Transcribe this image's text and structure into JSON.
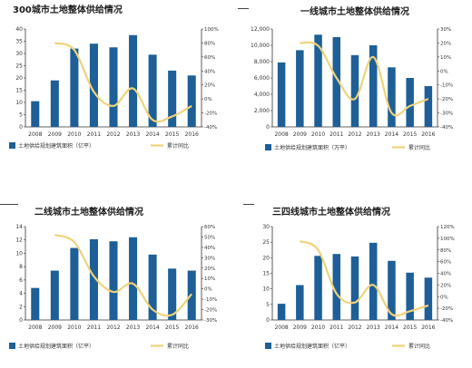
{
  "colors": {
    "bar": "#1d5f96",
    "line": "#f0d27a",
    "axis": "#333333",
    "grid": "#dddddd"
  },
  "chart_data": [
    {
      "type": "bar",
      "title": "300城市土地整体供给情况",
      "categories": [
        "2008",
        "2009",
        "2010",
        "2011",
        "2012",
        "2013",
        "2014",
        "2015",
        "2016"
      ],
      "series": [
        {
          "name": "土地供给规划建筑面积（亿平）",
          "type": "bar",
          "axis": "left",
          "values": [
            10.5,
            19.0,
            32.0,
            34.0,
            32.5,
            37.5,
            29.5,
            23.0,
            21.0
          ]
        },
        {
          "name": "累计同比",
          "type": "line",
          "axis": "right",
          "values": [
            null,
            80,
            70,
            10,
            -10,
            15,
            -30,
            -25,
            -10
          ]
        }
      ],
      "ylim": [
        0,
        40
      ],
      "yticks": [
        "0",
        "5",
        "10",
        "15",
        "20",
        "25",
        "30",
        "35",
        "40"
      ],
      "y2lim": [
        -40,
        100
      ],
      "y2ticks": [
        "-40%",
        "-20%",
        "0%",
        "20%",
        "40%",
        "60%",
        "80%",
        "100%"
      ]
    },
    {
      "type": "bar",
      "title": "一线城市土地整体供给情况",
      "categories": [
        "2008",
        "2009",
        "2010",
        "2011",
        "2012",
        "2013",
        "2014",
        "2015",
        "2016"
      ],
      "series": [
        {
          "name": "土地供给规划建筑面积（万平）",
          "type": "bar",
          "axis": "left",
          "values": [
            7900,
            9400,
            11300,
            11000,
            8800,
            10000,
            7300,
            6000,
            5000
          ]
        },
        {
          "name": "累计同比",
          "type": "line",
          "axis": "right",
          "values": [
            null,
            20,
            18,
            -5,
            -20,
            10,
            -30,
            -25,
            -20
          ]
        }
      ],
      "ylim": [
        0,
        12000
      ],
      "yticks": [
        "0",
        "2,000",
        "4,000",
        "6,000",
        "8,000",
        "10,000",
        "12,000"
      ],
      "y2lim": [
        -40,
        30
      ],
      "y2ticks": [
        "-40%",
        "-30%",
        "-20%",
        "-10%",
        "0%",
        "10%",
        "20%",
        "30%"
      ]
    },
    {
      "type": "bar",
      "title": "二线城市土地整体供给情况",
      "categories": [
        "2008",
        "2009",
        "2010",
        "2011",
        "2012",
        "2013",
        "2014",
        "2015",
        "2016"
      ],
      "series": [
        {
          "name": "土地供给规划建筑面积（亿平）",
          "type": "bar",
          "axis": "left",
          "values": [
            4.8,
            7.4,
            10.8,
            12.1,
            11.8,
            12.4,
            9.8,
            7.7,
            7.4
          ]
        },
        {
          "name": "累计同比",
          "type": "line",
          "axis": "right",
          "values": [
            null,
            52,
            45,
            12,
            -3,
            5,
            -20,
            -25,
            -5
          ]
        }
      ],
      "ylim": [
        0,
        14
      ],
      "yticks": [
        "0",
        "2",
        "4",
        "6",
        "8",
        "10",
        "12",
        "14"
      ],
      "y2lim": [
        -30,
        60
      ],
      "y2ticks": [
        "-30%",
        "-20%",
        "-10%",
        "0%",
        "10%",
        "20%",
        "30%",
        "40%",
        "50%",
        "60%"
      ]
    },
    {
      "type": "bar",
      "title": "三四线城市土地整体供给情况",
      "categories": [
        "2008",
        "2009",
        "2010",
        "2011",
        "2012",
        "2013",
        "2014",
        "2015",
        "2016"
      ],
      "series": [
        {
          "name": "土地供给规划建筑面积（亿平）",
          "type": "bar",
          "axis": "left",
          "values": [
            5.2,
            11.2,
            20.6,
            21.2,
            20.4,
            24.8,
            19.0,
            15.2,
            13.6
          ]
        },
        {
          "name": "累计同比",
          "type": "line",
          "axis": "right",
          "values": [
            null,
            95,
            80,
            5,
            -10,
            20,
            -30,
            -25,
            -15
          ]
        }
      ],
      "ylim": [
        0,
        30
      ],
      "yticks": [
        "0",
        "5",
        "10",
        "15",
        "20",
        "25",
        "30"
      ],
      "y2lim": [
        -40,
        120
      ],
      "y2ticks": [
        "-40%",
        "-20%",
        "0%",
        "20%",
        "40%",
        "60%",
        "80%",
        "100%",
        "120%"
      ]
    }
  ]
}
